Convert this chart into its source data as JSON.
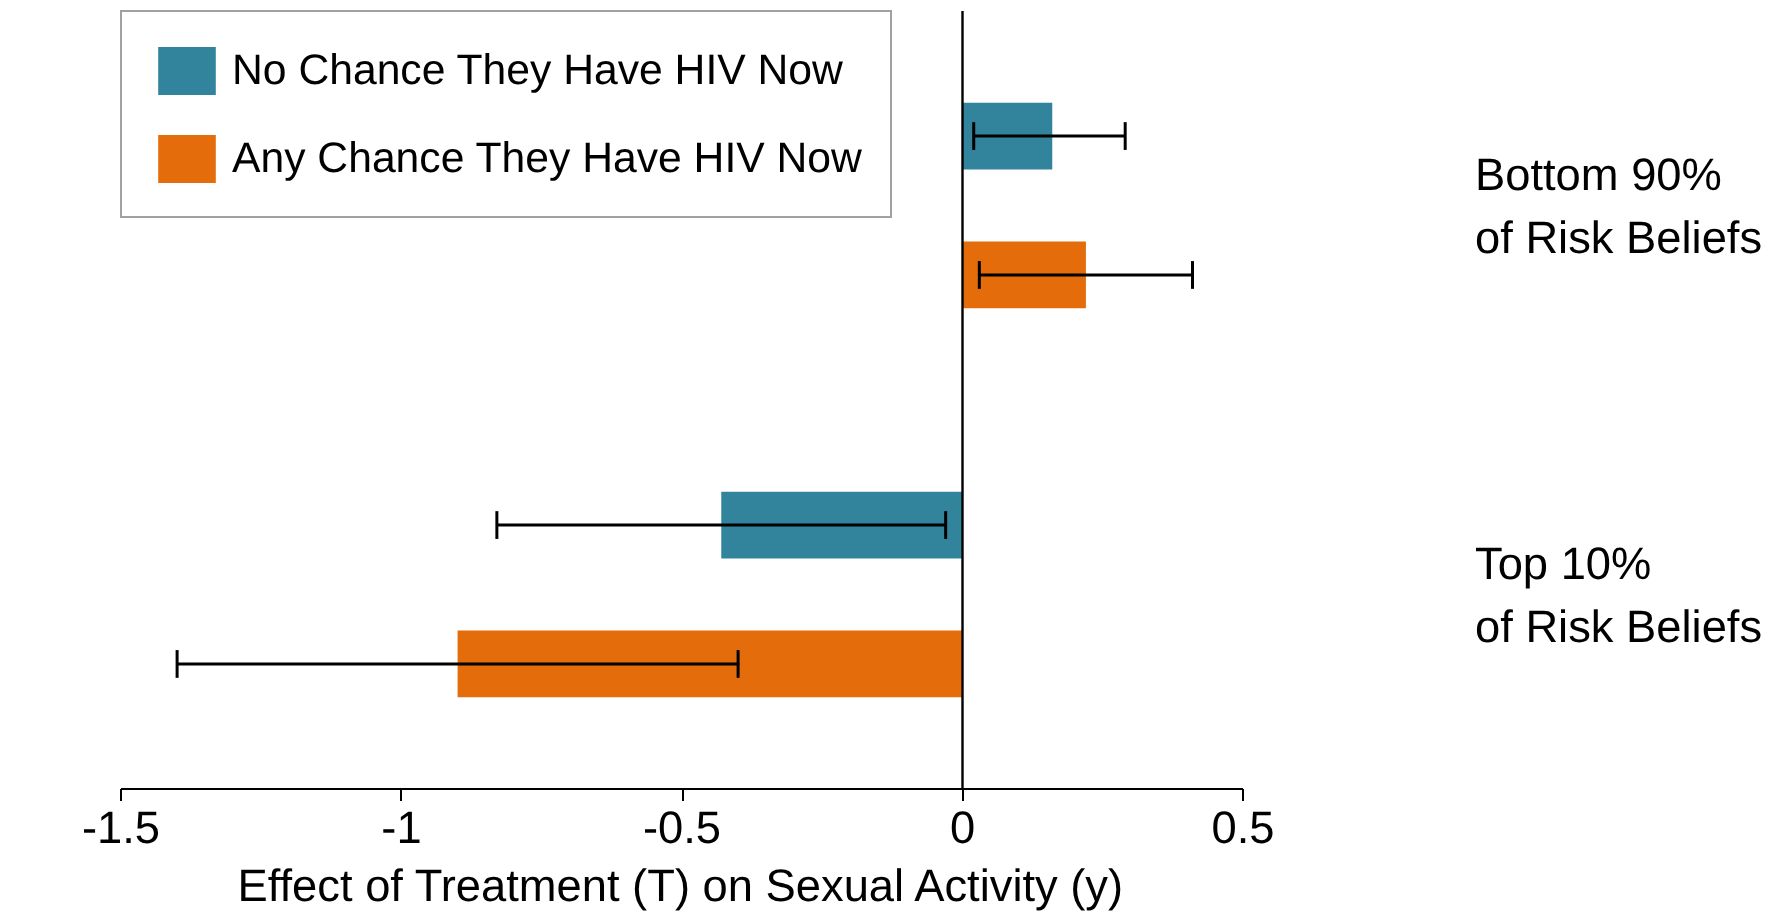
{
  "chart_data": {
    "type": "bar",
    "orientation": "horizontal",
    "xlabel": "Effect of Treatment (T) on Sexual Activity (y)",
    "categories": [
      "Bottom 90%\nof Risk Beliefs",
      "Top 10%\nof Risk Beliefs"
    ],
    "series": [
      {
        "name": "No Chance They Have HIV Now",
        "color": "#31849b",
        "values": [
          0.16,
          -0.43
        ],
        "errors": [
          [
            0.02,
            0.29
          ],
          [
            -0.83,
            -0.03
          ]
        ]
      },
      {
        "name": "Any Chance They Have HIV Now",
        "color": "#e46c0a",
        "values": [
          0.22,
          -0.9
        ],
        "errors": [
          [
            0.03,
            0.41
          ],
          [
            -1.4,
            -0.4
          ]
        ]
      }
    ],
    "xlim": [
      -1.5,
      0.5
    ],
    "xticks": [
      -1.5,
      -1,
      -0.5,
      0,
      0.5
    ],
    "ref_lines": [
      {
        "axis": "x",
        "value": 0,
        "color": "#000000"
      }
    ],
    "grid": false,
    "legend": "top left"
  }
}
